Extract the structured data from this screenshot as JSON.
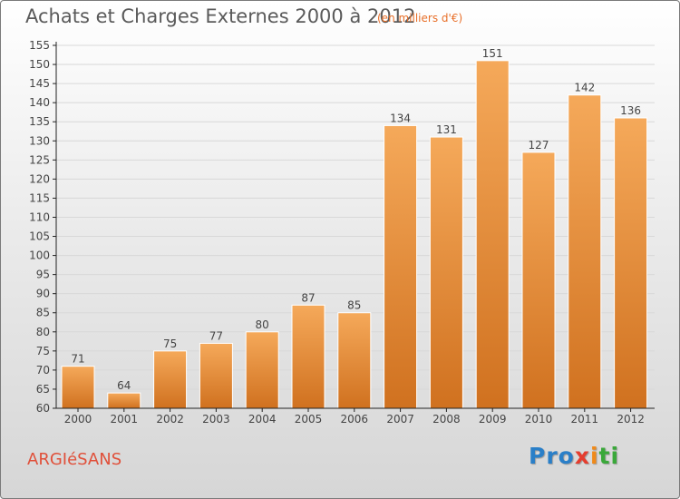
{
  "title": "Achats et Charges Externes 2000 à 2012",
  "unit_note": "(en milliers d'€)",
  "town": "ARGIéSANS",
  "brand": {
    "p1": "Pro",
    "p2": "x",
    "p3": "i",
    "p4": "ti"
  },
  "colors": {
    "bar_light": "#f5a95a",
    "bar_dark": "#d0711f",
    "grid": "#d8d8d8",
    "axis": "#222222",
    "title": "#5a5a5a",
    "unit_note": "#e8702a",
    "town": "#e0503a"
  },
  "chart_data": {
    "type": "bar",
    "title": "Achats et Charges Externes 2000 à 2012",
    "xlabel": "",
    "ylabel": "",
    "categories": [
      "2000",
      "2001",
      "2002",
      "2003",
      "2004",
      "2005",
      "2006",
      "2007",
      "2008",
      "2009",
      "2010",
      "2011",
      "2012"
    ],
    "values": [
      71,
      64,
      75,
      77,
      80,
      87,
      85,
      134,
      131,
      151,
      127,
      142,
      136
    ],
    "ylim": [
      60,
      155
    ],
    "yticks": [
      60,
      65,
      70,
      75,
      80,
      85,
      90,
      95,
      100,
      105,
      110,
      115,
      120,
      125,
      130,
      135,
      140,
      145,
      150,
      155
    ],
    "grid": true,
    "legend": "none"
  }
}
